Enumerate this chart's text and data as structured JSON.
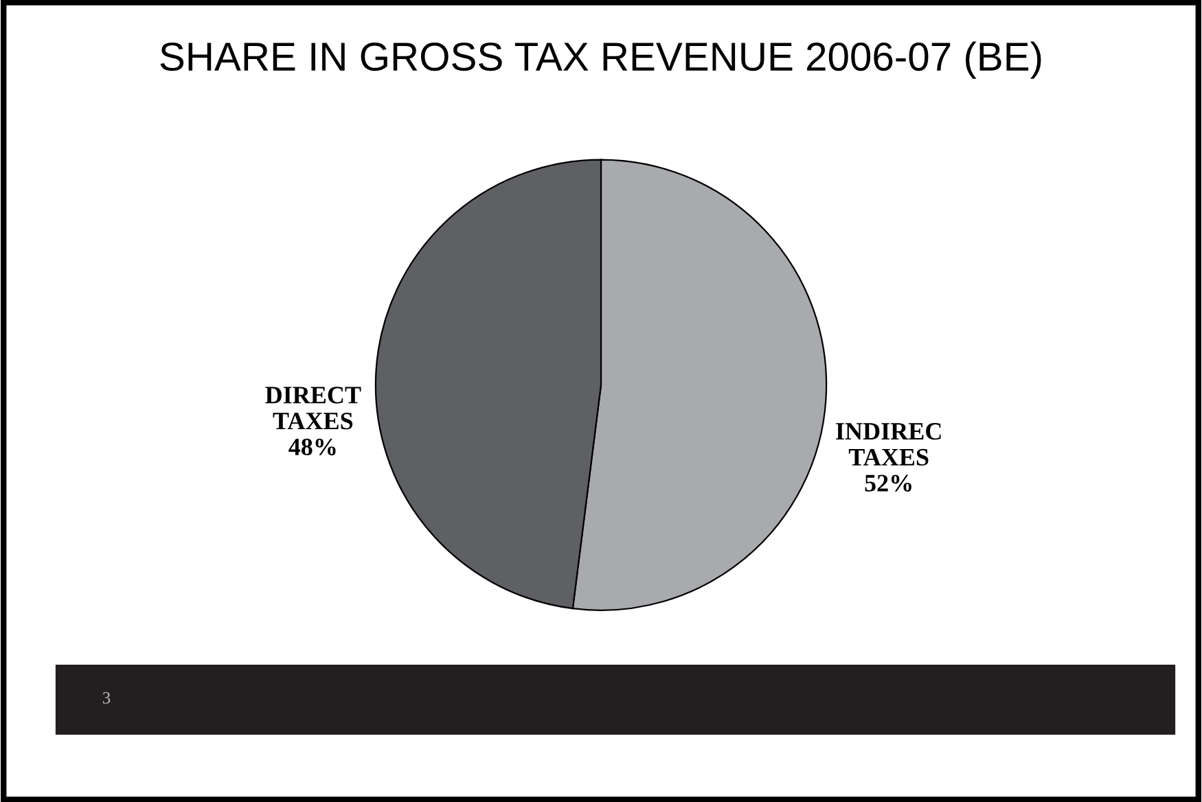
{
  "chart_data": {
    "type": "pie",
    "title": "SHARE IN GROSS TAX REVENUE 2006-07 (BE)",
    "categories": [
      "INDIREC\nTAXES",
      "DIRECT\nTAXES"
    ],
    "values": [
      52,
      48
    ],
    "value_labels": [
      "52%",
      "48%"
    ],
    "colors": [
      "#a9aaad",
      "#5f6064"
    ],
    "annotations": [
      "3"
    ]
  }
}
